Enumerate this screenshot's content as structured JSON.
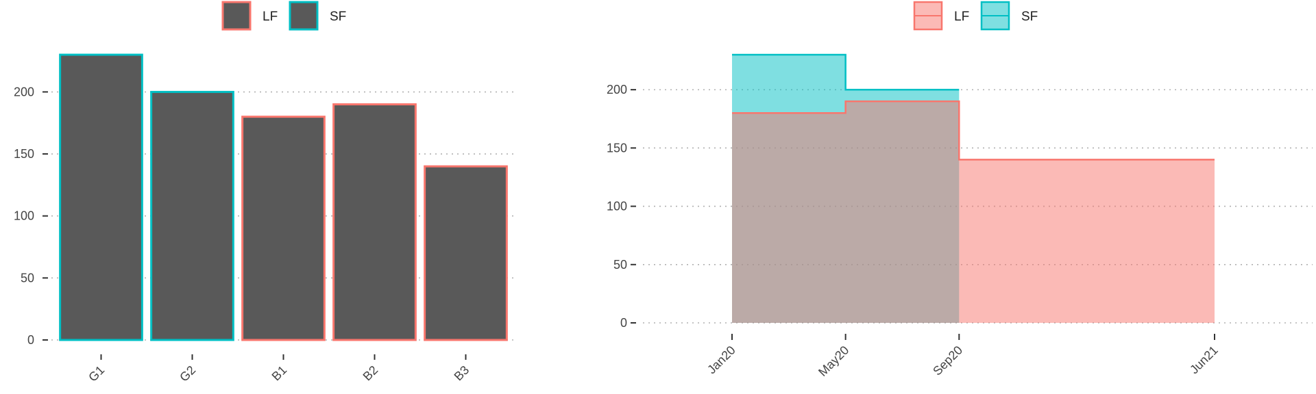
{
  "chart_data": [
    {
      "type": "bar",
      "categories": [
        "G1",
        "G2",
        "B1",
        "B2",
        "B3"
      ],
      "values": [
        230,
        200,
        180,
        190,
        140
      ],
      "groups": [
        "SF",
        "SF",
        "LF",
        "LF",
        "LF"
      ],
      "ylim": [
        0,
        230
      ],
      "yticks": [
        0,
        50,
        100,
        150,
        200
      ],
      "grid": "horizontal dotted",
      "legend": {
        "placement": "top",
        "entries": [
          {
            "label": "LF",
            "color": "#F8766D"
          },
          {
            "label": "SF",
            "color": "#00BFC4"
          }
        ]
      },
      "bar_fill": "#595959"
    },
    {
      "type": "area",
      "subtype": "step",
      "x_labels": [
        "Jan20",
        "May20",
        "Sep20",
        "Jun21"
      ],
      "ylim": [
        0,
        230
      ],
      "yticks": [
        0,
        50,
        100,
        150,
        200
      ],
      "grid": "horizontal dotted",
      "series": [
        {
          "name": "LF",
          "color": "#F8766D",
          "fill": "#F8766D",
          "x": [
            "Jan20",
            "May20",
            "Sep20",
            "Jun21"
          ],
          "values": [
            180,
            190,
            140,
            140
          ]
        },
        {
          "name": "SF",
          "color": "#00BFC4",
          "fill": "#00BFC4",
          "x": [
            "Jan20",
            "May20",
            "Sep20"
          ],
          "values": [
            230,
            200,
            200
          ]
        }
      ],
      "legend": {
        "placement": "top"
      }
    }
  ]
}
